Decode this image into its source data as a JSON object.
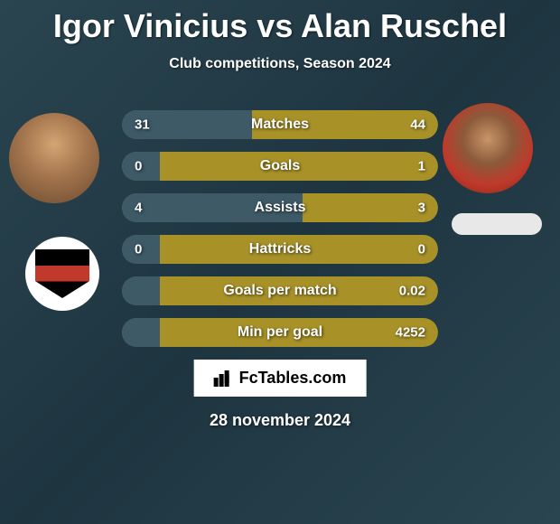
{
  "title": "Igor Vinicius vs Alan Ruschel",
  "subtitle": "Club competitions, Season 2024",
  "date": "28 november 2024",
  "watermark_text": "FcTables.com",
  "colors": {
    "bar_background": "#a89228",
    "bar_fill": "#3d5a66",
    "text": "#ffffff"
  },
  "player_left": {
    "name": "Igor Vinicius",
    "club_logo": "SPFC"
  },
  "player_right": {
    "name": "Alan Ruschel"
  },
  "stats": [
    {
      "label": "Matches",
      "left_value": "31",
      "right_value": "44",
      "left_pct": 41
    },
    {
      "label": "Goals",
      "left_value": "0",
      "right_value": "1",
      "left_pct": 12
    },
    {
      "label": "Assists",
      "left_value": "4",
      "right_value": "3",
      "left_pct": 57
    },
    {
      "label": "Hattricks",
      "left_value": "0",
      "right_value": "0",
      "left_pct": 12
    },
    {
      "label": "Goals per match",
      "left_value": "",
      "right_value": "0.02",
      "left_pct": 12
    },
    {
      "label": "Min per goal",
      "left_value": "",
      "right_value": "4252",
      "left_pct": 12
    }
  ]
}
